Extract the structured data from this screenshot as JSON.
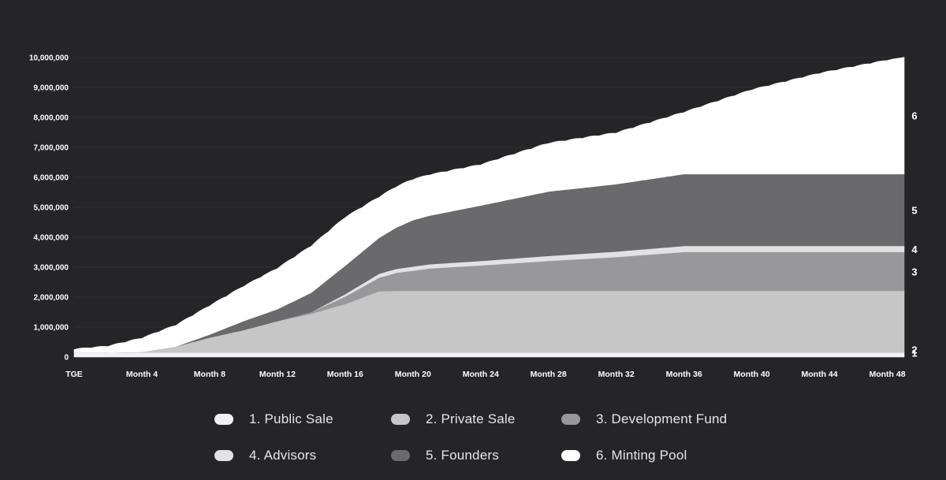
{
  "chart_data": {
    "type": "area",
    "stacked": true,
    "background": "#252527",
    "y_ticks": [
      "0",
      "1,000,000",
      "2,000,000",
      "3,000,000",
      "4,000,000",
      "5,000,000",
      "6,000,000",
      "7,000,000",
      "8,000,000",
      "9,000,000",
      "10,000,000"
    ],
    "ylim": [
      0,
      10000000
    ],
    "x_ticks": [
      "TGE",
      "Month 4",
      "Month 8",
      "Month 12",
      "Month 16",
      "Month 20",
      "Month 24",
      "Month 28",
      "Month 32",
      "Month 36",
      "Month 40",
      "Month 44",
      "Month 48"
    ],
    "xlim": [
      0,
      49
    ],
    "x_tick_months": [
      0,
      4,
      8,
      12,
      16,
      20,
      24,
      28,
      32,
      36,
      40,
      44,
      48
    ],
    "legend_position": "bottom",
    "series": [
      {
        "name": "1. Public Sale",
        "short_label": "1",
        "color": "#f2f2f2",
        "points": [
          [
            0,
            150000
          ],
          [
            2,
            150000
          ],
          [
            49,
            150000
          ]
        ]
      },
      {
        "name": "2. Private Sale",
        "short_label": "2",
        "color": "#c6c6c6",
        "points": [
          [
            0,
            0
          ],
          [
            2,
            0
          ],
          [
            4,
            20000
          ],
          [
            6,
            200000
          ],
          [
            8,
            500000
          ],
          [
            10,
            750000
          ],
          [
            12,
            1050000
          ],
          [
            14,
            1300000
          ],
          [
            16,
            1620000
          ],
          [
            18,
            2050000
          ],
          [
            19,
            2060000
          ],
          [
            49,
            2060000
          ]
        ]
      },
      {
        "name": "3. Development Fund",
        "short_label": "3",
        "color": "#98989a",
        "points": [
          [
            0,
            0
          ],
          [
            12,
            0
          ],
          [
            14,
            50000
          ],
          [
            16,
            250000
          ],
          [
            18,
            450000
          ],
          [
            19,
            600000
          ],
          [
            21,
            750000
          ],
          [
            24,
            850000
          ],
          [
            28,
            1000000
          ],
          [
            32,
            1130000
          ],
          [
            36,
            1300000
          ],
          [
            49,
            1300000
          ]
        ]
      },
      {
        "name": "4. Advisors",
        "short_label": "4",
        "color": "#e2e2e2",
        "points": [
          [
            0,
            0
          ],
          [
            14,
            0
          ],
          [
            16,
            80000
          ],
          [
            18,
            130000
          ],
          [
            24,
            150000
          ],
          [
            36,
            200000
          ],
          [
            49,
            200000
          ]
        ]
      },
      {
        "name": "5. Founders",
        "short_label": "5",
        "color": "#6a6a6d",
        "points": [
          [
            0,
            0
          ],
          [
            6,
            0
          ],
          [
            8,
            100000
          ],
          [
            10,
            300000
          ],
          [
            12,
            400000
          ],
          [
            14,
            650000
          ],
          [
            16,
            950000
          ],
          [
            18,
            1200000
          ],
          [
            20,
            1550000
          ],
          [
            24,
            1850000
          ],
          [
            28,
            2150000
          ],
          [
            32,
            2250000
          ],
          [
            36,
            2400000
          ],
          [
            49,
            2400000
          ]
        ]
      },
      {
        "name": "6. Minting Pool",
        "short_label": "6",
        "color": "#ffffff",
        "points": [
          [
            0,
            100000
          ],
          [
            2,
            200000
          ],
          [
            4,
            450000
          ],
          [
            6,
            700000
          ],
          [
            8,
            950000
          ],
          [
            10,
            1150000
          ],
          [
            12,
            1350000
          ],
          [
            14,
            1550000
          ],
          [
            16,
            1600000
          ],
          [
            18,
            1350000
          ],
          [
            20,
            1350000
          ],
          [
            24,
            1350000
          ],
          [
            28,
            1600000
          ],
          [
            32,
            1700000
          ],
          [
            36,
            2050000
          ],
          [
            40,
            2800000
          ],
          [
            44,
            3350000
          ],
          [
            49,
            3900000
          ]
        ]
      }
    ]
  }
}
